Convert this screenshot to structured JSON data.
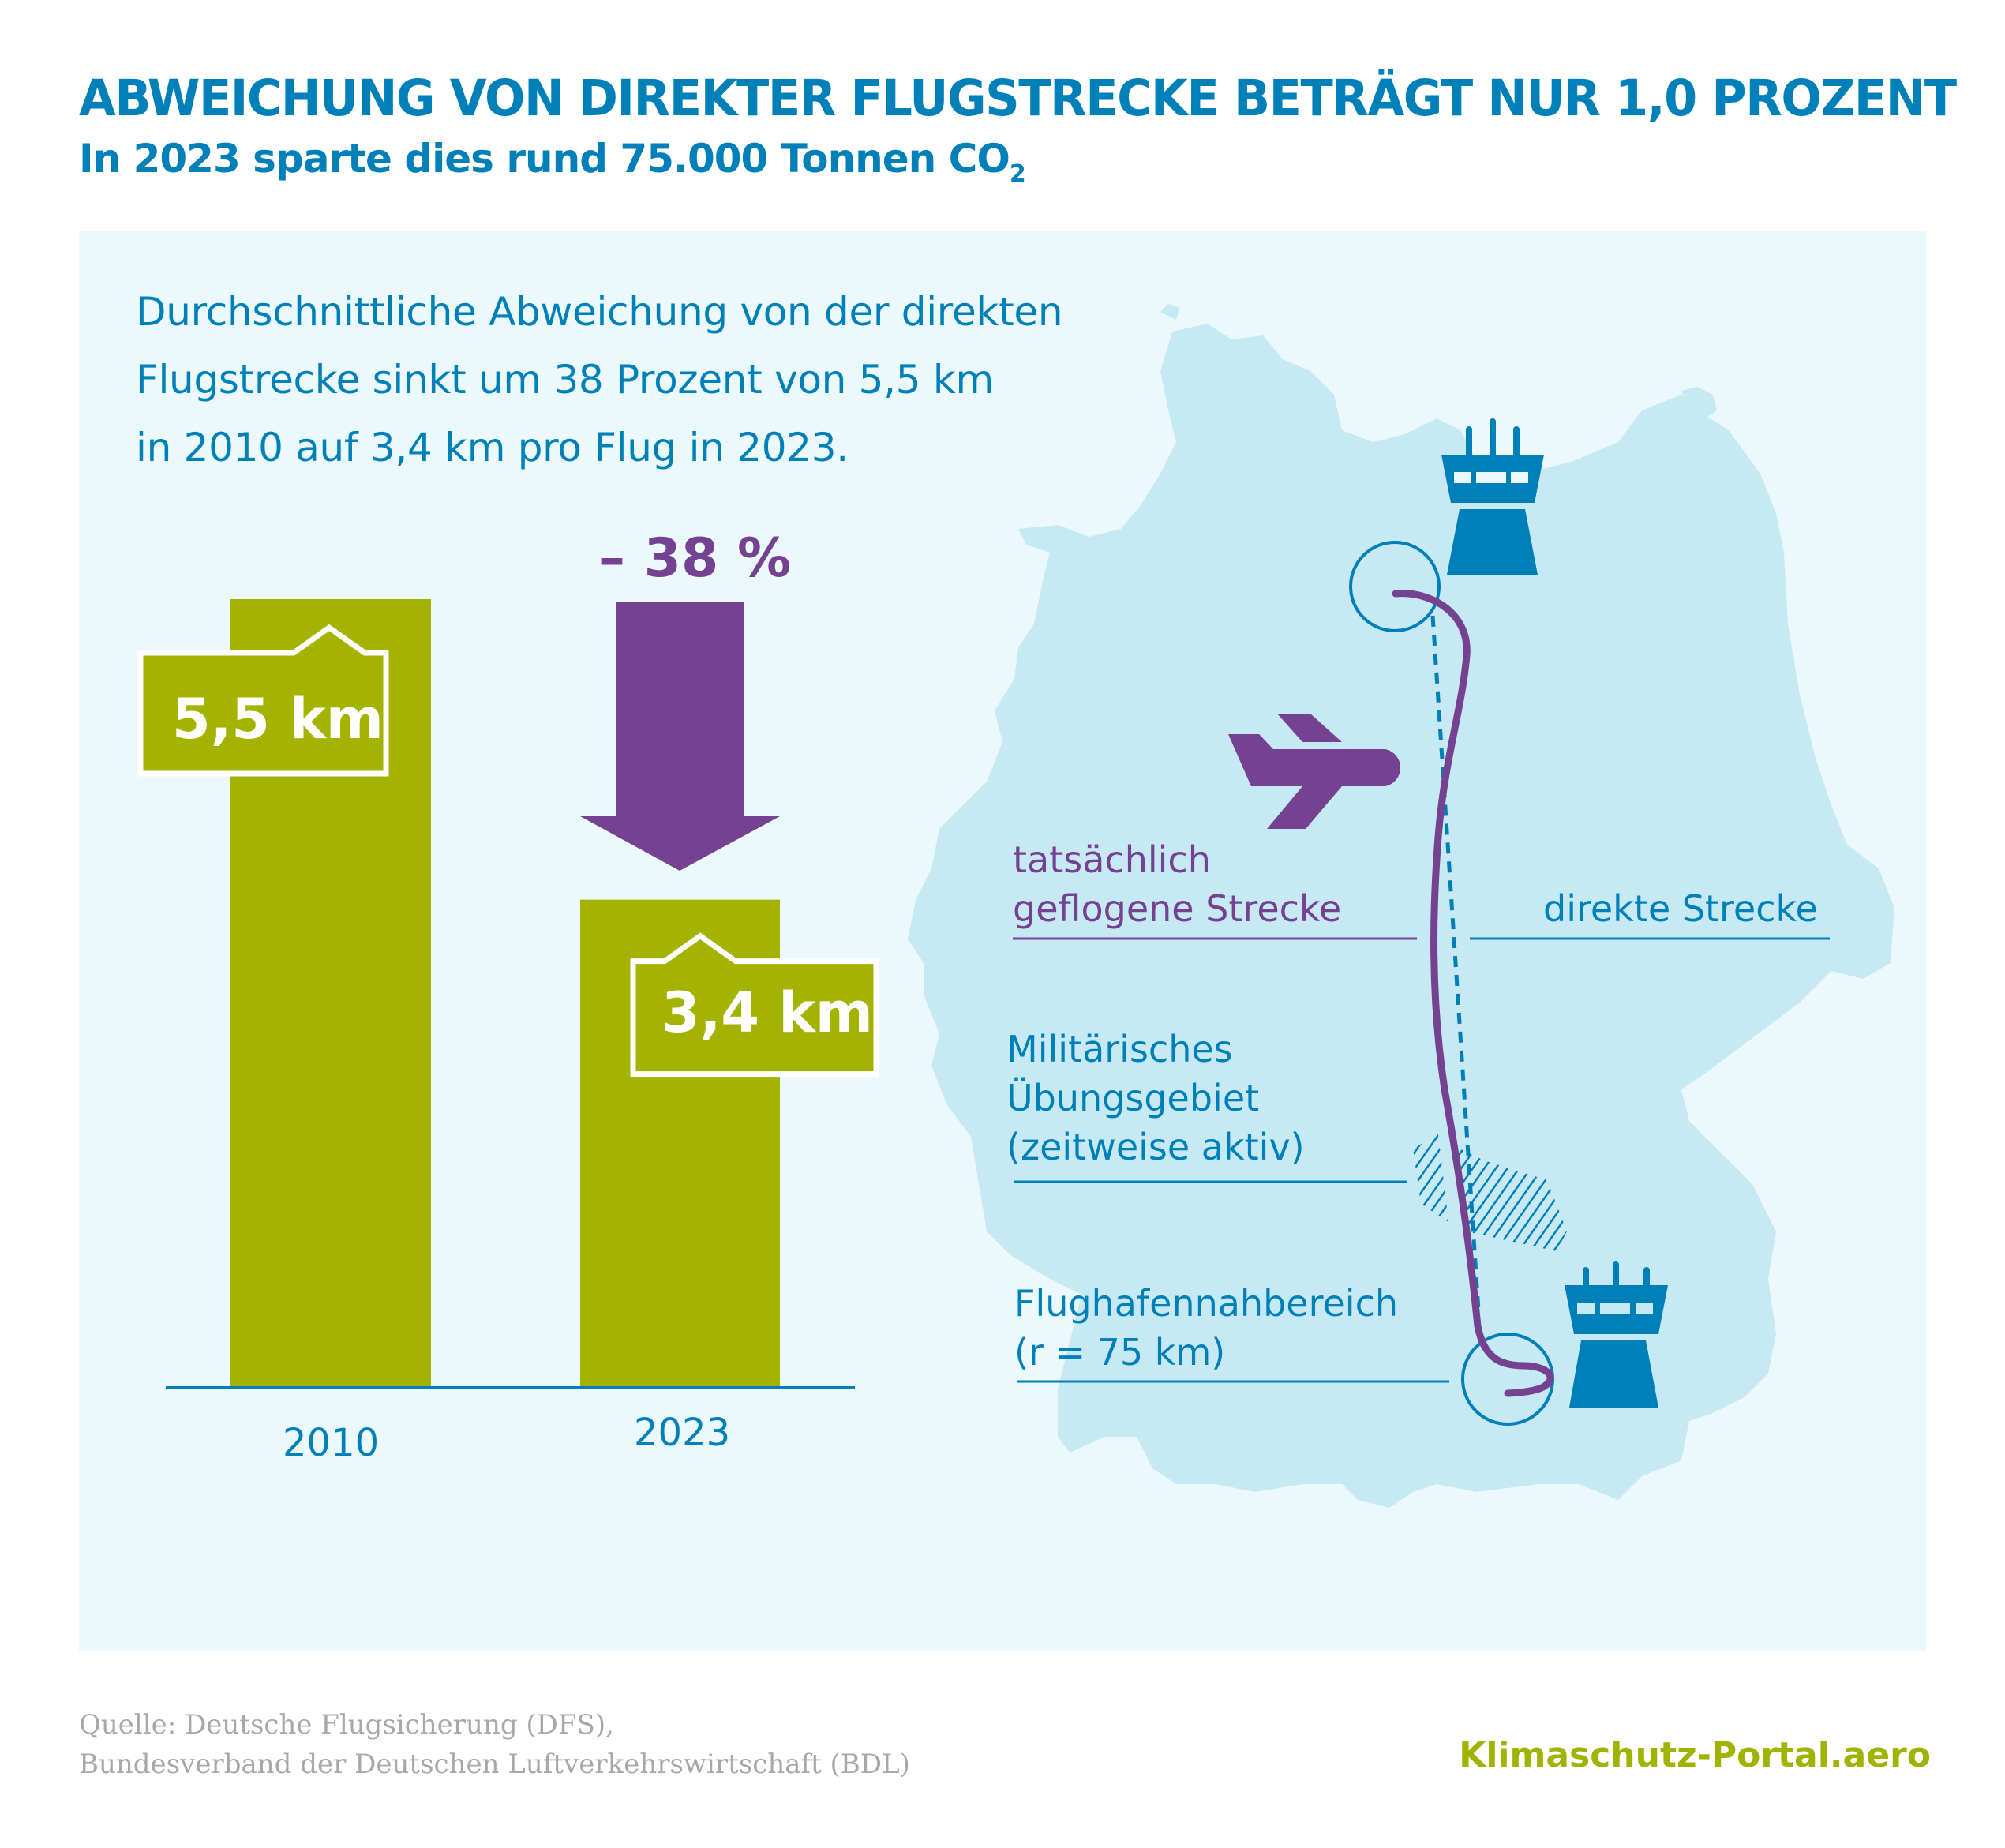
{
  "header": {
    "title": "ABWEICHUNG VON DIREKTER FLUGSTRECKE BETRÄGT NUR 1,0 PROZENT",
    "subtitle_main": "In 2023 sparte dies rund 75.000 Tonnen CO",
    "subtitle_sub": "2"
  },
  "intro": {
    "lines": [
      "Durchschnittliche Abweichung von der direkten",
      "Flugstrecke sinkt um 38 Prozent von 5,5 km",
      "in 2010 auf 3,4 km pro Flug in 2023."
    ]
  },
  "colors": {
    "title": "#0080b8",
    "bar": "#a3b300",
    "accent_purple": "#744290",
    "panel_bg": "#ebf9fd",
    "map_fill": "#c7e9f4",
    "brand": "#9fb300",
    "source_text": "#a8a8a8"
  },
  "chart_data": {
    "type": "bar",
    "title": "Durchschnittliche Abweichung von der direkten Flugstrecke",
    "categories": [
      "2010",
      "2023"
    ],
    "values": [
      5.5,
      3.4
    ],
    "value_labels": [
      "5,5 km",
      "3,4 km"
    ],
    "unit": "km",
    "change_label": "– 38 %",
    "change_percent": -38,
    "xlabel": "",
    "ylabel": "",
    "ylim": [
      0,
      5.5
    ],
    "grid": false
  },
  "map": {
    "icons": [
      "control-tower-icon",
      "airplane-icon"
    ],
    "labels": {
      "actual_route_line1": "tatsächlich",
      "actual_route_line2": "geflogene Strecke",
      "direct_route": "direkte Strecke",
      "military_line1": "Militärisches",
      "military_line2": "Übungsgebiet",
      "military_line3": "(zeitweise aktiv)",
      "airport_line1": "Flughafennahbereich",
      "airport_line2": "(r = 75 km)"
    }
  },
  "footer": {
    "source_line1": "Quelle: Deutsche Flugsicherung (DFS),",
    "source_line2": "Bundesverband der Deutschen Luftverkehrswirtschaft (BDL)",
    "brand": "Klimaschutz-Portal.aero"
  }
}
